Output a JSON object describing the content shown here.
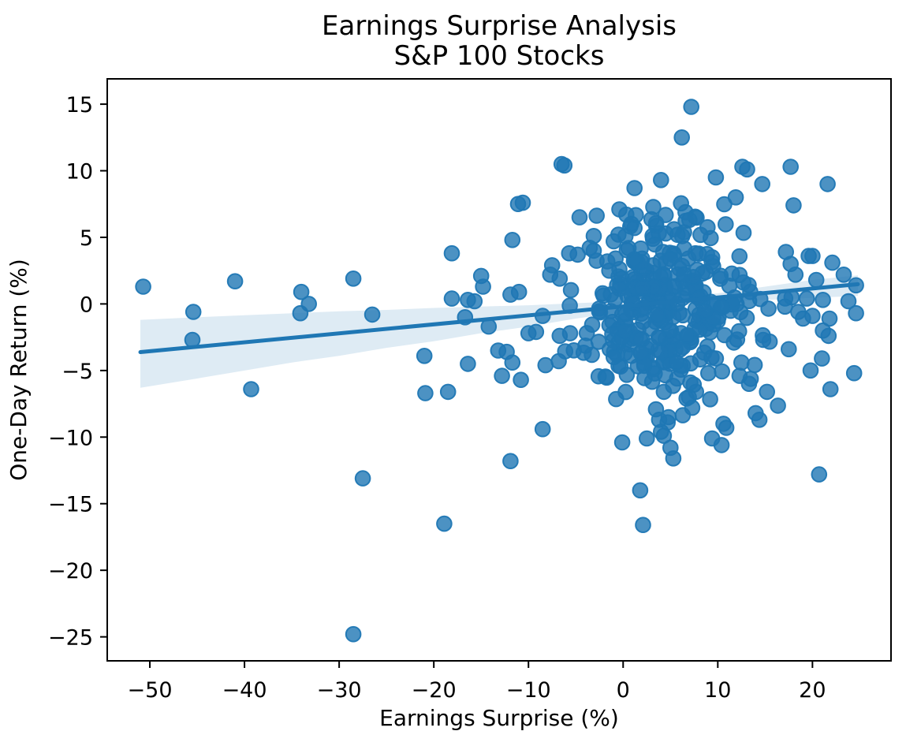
{
  "figure": {
    "title_line1": "Earnings Surprise Analysis",
    "title_line2": "S&P 100 Stocks",
    "xlabel": "Earnings Surprise (%)",
    "ylabel": "One-Day Return (%)"
  },
  "colors": {
    "point": "#1f77b4",
    "point_fill_opacity": 0.8,
    "regression_line": "#1f77b4",
    "confidence_band": "#1f77b4",
    "confidence_band_opacity": 0.15,
    "axis": "#000000",
    "background": "#ffffff"
  },
  "chart_data": {
    "type": "scatter",
    "title": "Earnings Surprise Analysis",
    "subtitle": "S&P 100 Stocks",
    "xlabel": "Earnings Surprise (%)",
    "ylabel": "One-Day Return (%)",
    "xlim": [
      -54.5,
      28.3
    ],
    "ylim": [
      -26.8,
      16.9
    ],
    "xticks": [
      -50,
      -40,
      -30,
      -20,
      -10,
      0,
      10,
      20
    ],
    "yticks": [
      15,
      10,
      5,
      0,
      -5,
      -10,
      -15,
      -20,
      -25
    ],
    "grid": false,
    "legend": "none",
    "marker_radius_px": 9.3,
    "regression_line": {
      "x": [
        -51.0,
        24.8
      ],
      "y": [
        -3.62,
        1.48
      ]
    },
    "confidence_band": {
      "x": [
        -51,
        -45,
        -40,
        -35,
        -30,
        -25,
        -20,
        -15,
        -10,
        -5,
        0,
        5,
        10,
        15,
        20,
        24.8
      ],
      "top": [
        -1.2,
        -1.0,
        -0.85,
        -0.7,
        -0.55,
        -0.45,
        -0.3,
        -0.2,
        -0.1,
        0.05,
        0.2,
        0.4,
        0.8,
        1.3,
        1.8,
        2.15
      ],
      "bottom": [
        -6.3,
        -5.6,
        -5.0,
        -4.4,
        -3.9,
        -3.3,
        -2.8,
        -2.2,
        -1.7,
        -1.1,
        -0.6,
        -0.1,
        0.15,
        0.3,
        0.45,
        0.6
      ]
    },
    "points": [
      [
        -50.7,
        1.3
      ],
      [
        -45.4,
        -0.6
      ],
      [
        -45.5,
        -2.7
      ],
      [
        -41,
        1.7
      ],
      [
        -39.3,
        -6.4
      ],
      [
        -34,
        0.9
      ],
      [
        -33.2,
        0
      ],
      [
        -34.1,
        -0.7
      ],
      [
        -28.5,
        1.9
      ],
      [
        -27.5,
        -13.1
      ],
      [
        -28.5,
        -24.8
      ],
      [
        -26.5,
        -0.8
      ],
      [
        -21,
        -3.9
      ],
      [
        -20.9,
        -6.7
      ],
      [
        -18.9,
        -16.5
      ],
      [
        -18.5,
        -6.6
      ],
      [
        -18.1,
        3.8
      ],
      [
        -18.1,
        0.4
      ],
      [
        -16.4,
        0.3
      ],
      [
        -15.7,
        0.2
      ],
      [
        -16.7,
        -1
      ],
      [
        -16.4,
        -4.5
      ],
      [
        -15,
        2.1
      ],
      [
        -14.8,
        1.3
      ],
      [
        -14.2,
        -1.7
      ],
      [
        -13.2,
        -3.5
      ],
      [
        -12.3,
        -3.6
      ],
      [
        -12.8,
        -5.4
      ],
      [
        -11.7,
        -4.4
      ],
      [
        -11.9,
        -11.8
      ],
      [
        -11.7,
        4.8
      ],
      [
        -11.9,
        0.7
      ],
      [
        -11,
        0.9
      ],
      [
        -11.1,
        7.5
      ],
      [
        -10.6,
        7.6
      ],
      [
        -10.8,
        -5.7
      ],
      [
        -10,
        -2.2
      ],
      [
        -9.2,
        -2.1
      ],
      [
        -8.5,
        -0.9
      ],
      [
        -8.5,
        -9.4
      ],
      [
        -8.2,
        -4.6
      ],
      [
        -7.5,
        2.9
      ],
      [
        -7.7,
        2.2
      ],
      [
        -6.8,
        -4.3
      ],
      [
        -6.7,
        1.9
      ],
      [
        -6.7,
        -2.4
      ],
      [
        -6.5,
        10.5
      ],
      [
        -6.2,
        10.4
      ],
      [
        -5.7,
        3.8
      ],
      [
        -5.6,
        -2.2
      ],
      [
        -4.8,
        3.7
      ],
      [
        -4.6,
        6.5
      ],
      [
        -3.1,
        5.1
      ],
      [
        -3.1,
        4
      ],
      [
        -1,
        4.7
      ],
      [
        -0.4,
        7.1
      ],
      [
        1.2,
        8.7
      ],
      [
        4,
        9.3
      ],
      [
        1.2,
        5.7
      ],
      [
        7.2,
        14.8
      ],
      [
        6.2,
        12.5
      ],
      [
        9.8,
        9.5
      ],
      [
        11.9,
        8
      ],
      [
        12.6,
        10.3
      ],
      [
        13.1,
        10.1
      ],
      [
        14.7,
        9
      ],
      [
        17.7,
        10.3
      ],
      [
        21.6,
        9
      ],
      [
        18,
        7.4
      ],
      [
        17.2,
        3.9
      ],
      [
        19.6,
        3.6
      ],
      [
        20,
        3.6
      ],
      [
        22.1,
        3.1
      ],
      [
        17.7,
        3
      ],
      [
        18.2,
        2.2
      ],
      [
        23.3,
        2.2
      ],
      [
        24.6,
        1.4
      ],
      [
        20.4,
        1.8
      ],
      [
        17.8,
        0.5
      ],
      [
        19.4,
        0.4
      ],
      [
        21.1,
        0.3
      ],
      [
        23.8,
        0.2
      ],
      [
        24.6,
        -0.7
      ],
      [
        17.1,
        -0.2
      ],
      [
        18.5,
        -0.6
      ],
      [
        20,
        -0.9
      ],
      [
        21.8,
        -1.1
      ],
      [
        19,
        -1.1
      ],
      [
        21.1,
        -2
      ],
      [
        21.7,
        -2.4
      ],
      [
        17.5,
        -3.4
      ],
      [
        21,
        -4.1
      ],
      [
        19.8,
        -5
      ],
      [
        24.4,
        -5.2
      ],
      [
        21.9,
        -6.4
      ],
      [
        20.7,
        -12.8
      ],
      [
        -0.1,
        -10.4
      ],
      [
        4.3,
        -9.9
      ],
      [
        4.7,
        -8.9
      ],
      [
        10.4,
        -10.6
      ],
      [
        10.9,
        -9.3
      ],
      [
        14.4,
        -8.7
      ],
      [
        5.3,
        -11.6
      ],
      [
        1.8,
        -14
      ],
      [
        2.1,
        -16.6
      ],
      [
        2.5,
        -10.1
      ],
      [
        5,
        -10.8
      ],
      [
        9.4,
        -10.1
      ],
      [
        4,
        -9.6
      ],
      [
        3.8,
        -8.7
      ],
      [
        4.8,
        -8.5
      ],
      [
        10.6,
        -9
      ],
      [
        14,
        -8.2
      ],
      [
        15.2,
        -6.6
      ],
      [
        13.3,
        -6
      ],
      [
        12.3,
        -5.4
      ],
      [
        12.5,
        -4.4
      ],
      [
        9.8,
        -4.1
      ],
      [
        8.9,
        -3.2
      ],
      [
        11.7,
        -2.9
      ],
      [
        14.8,
        -2.7
      ],
      [
        9,
        -5.2
      ],
      [
        5.7,
        -5.6
      ],
      [
        7.1,
        -5.9
      ],
      [
        7.7,
        -6.6
      ],
      [
        6.7,
        -7.1
      ],
      [
        7.3,
        -7.8
      ],
      [
        4.3,
        -6.6
      ]
    ],
    "dense_cluster": {
      "note": "central blob of heavily overlapping points; individual values not resolvable in pixels, approximated by this sampling spec",
      "count": 320,
      "center": [
        4.3,
        0.1
      ],
      "sigma": [
        4.6,
        3.3
      ],
      "clip_x": [
        -9.5,
        19.8
      ],
      "clip_y": [
        -9.2,
        8.6
      ],
      "seed": 42
    }
  }
}
